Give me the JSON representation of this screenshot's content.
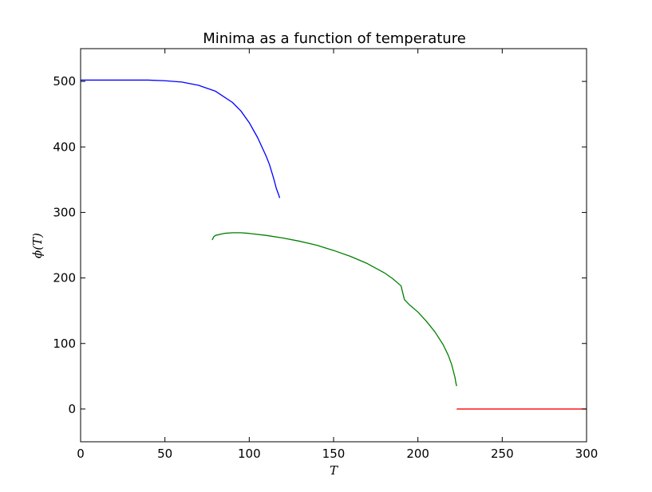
{
  "chart_data": {
    "type": "line",
    "title": "Minima as a function of temperature",
    "xlabel": "T",
    "ylabel": "ϕ(T)",
    "xlim": [
      0,
      300
    ],
    "ylim": [
      -50,
      550
    ],
    "xticks": [
      0,
      50,
      100,
      150,
      200,
      250,
      300
    ],
    "yticks": [
      0,
      100,
      200,
      300,
      400,
      500
    ],
    "grid": false,
    "series": [
      {
        "color": "#0000ff",
        "x": [
          0,
          10,
          20,
          30,
          40,
          50,
          60,
          70,
          80,
          90,
          95,
          100,
          105,
          110,
          112,
          114,
          115,
          116,
          117,
          117.7,
          118
        ],
        "y": [
          502,
          502,
          502,
          502,
          502,
          501,
          499,
          494,
          485,
          468,
          455,
          437,
          414,
          386,
          373,
          356,
          347,
          337,
          330,
          325,
          322
        ]
      },
      {
        "color": "#008000",
        "x": [
          78,
          79,
          80,
          85,
          90,
          95,
          100,
          110,
          120,
          130,
          140,
          150,
          160,
          170,
          180,
          185,
          190,
          192,
          195,
          200,
          205,
          210,
          215,
          218,
          220,
          221,
          222,
          222.5,
          223
        ],
        "y": [
          258,
          263,
          265,
          268,
          269,
          269,
          268,
          265,
          261,
          256,
          250,
          242,
          233,
          222,
          208,
          199,
          188,
          167,
          159,
          148,
          134,
          118,
          98,
          82,
          68,
          58,
          48,
          40,
          35
        ]
      },
      {
        "color": "#ff0000",
        "x": [
          223,
          300
        ],
        "y": [
          0,
          0
        ]
      }
    ]
  }
}
